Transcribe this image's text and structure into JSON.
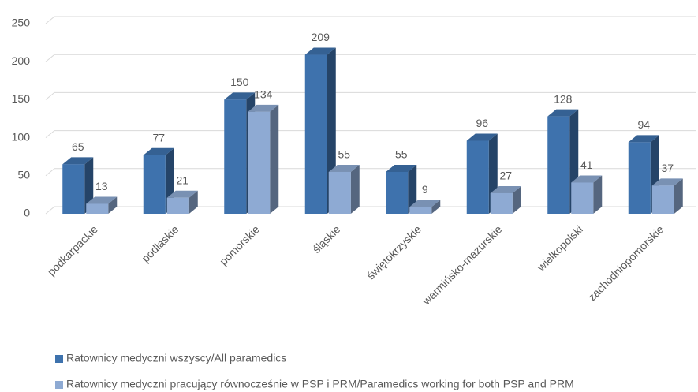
{
  "chart_data": {
    "type": "bar",
    "categories": [
      "podkarpackie",
      "podlaskie",
      "pomorskie",
      "śląskie",
      "świętokrzyskie",
      "warmińsko-mazurskie",
      "wielkopolski",
      "zachodniopomorskie"
    ],
    "series": [
      {
        "name": "Ratownicy medyczni wszyscy/All paramedics",
        "color": "#3e72ad",
        "values": [
          65,
          77,
          150,
          209,
          55,
          96,
          128,
          94
        ]
      },
      {
        "name": "Ratownicy medyczni pracujący równocześnie w PSP i PRM/Paramedics working for both PSP and PRM",
        "color": "#8eaad3",
        "values": [
          13,
          21,
          134,
          55,
          9,
          27,
          41,
          37
        ]
      }
    ],
    "ylim": [
      0,
      250
    ],
    "yticks": [
      0,
      50,
      100,
      150,
      200,
      250
    ],
    "grid": true
  }
}
